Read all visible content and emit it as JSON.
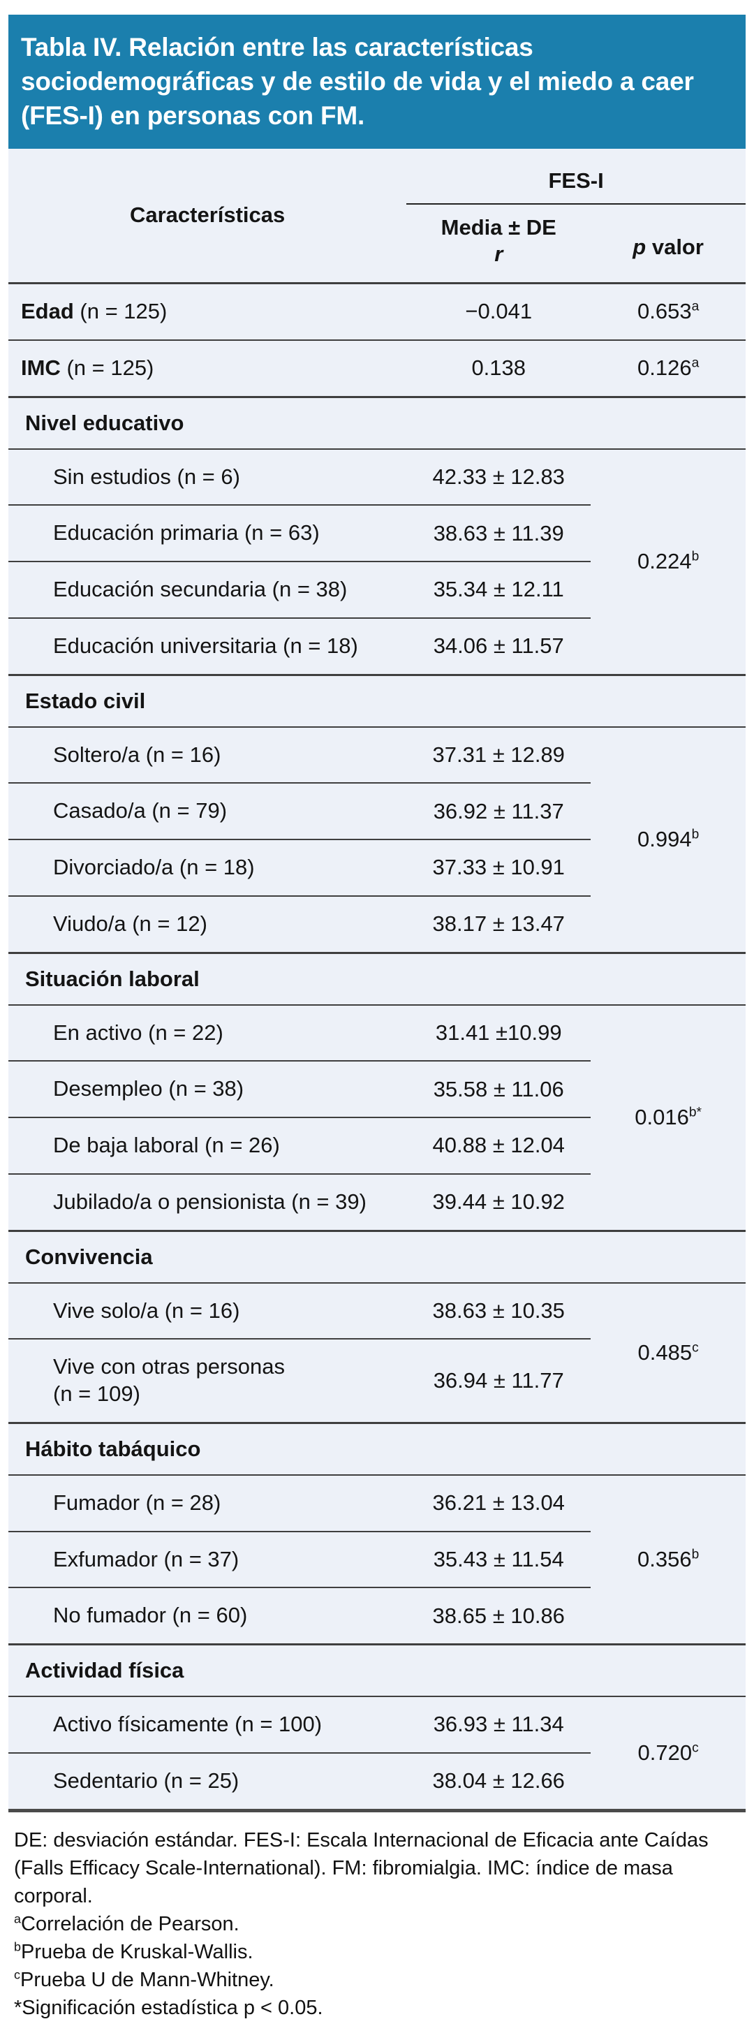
{
  "title": "Tabla IV. Relación entre las características sociodemográficas y de estilo de vida y el miedo a caer (FES-I) en personas con FM.",
  "colors": {
    "header_bg": "#1b7fad",
    "body_bg": "#edf1f8",
    "line": "#3f3f3f",
    "title_text": "#ffffff"
  },
  "table": {
    "col_characteristics": "Características",
    "col_group": "FES-I",
    "col_mean_line1": "Media ± DE",
    "col_mean_line2": "r",
    "col_p_italic": "p",
    "col_p_rest": " valor",
    "simple_rows": [
      {
        "label_bold": "Edad",
        "label_rest": " (n = 125)",
        "value": "−0.041",
        "p": "0.653",
        "p_sup": "a"
      },
      {
        "label_bold": "IMC",
        "label_rest": " (n = 125)",
        "value": "0.138",
        "p": "0.126",
        "p_sup": "a"
      }
    ],
    "sections": [
      {
        "header": "Nivel educativo",
        "p": "0.224",
        "p_sup": "b",
        "rows": [
          {
            "label": "Sin estudios (n = 6)",
            "value": "42.33 ± 12.83"
          },
          {
            "label": "Educación primaria (n = 63)",
            "value": "38.63 ± 11.39"
          },
          {
            "label": "Educación secundaria (n = 38)",
            "value": "35.34 ± 12.11"
          },
          {
            "label": "Educación universitaria (n = 18)",
            "value": "34.06 ± 11.57"
          }
        ]
      },
      {
        "header": "Estado civil",
        "p": "0.994",
        "p_sup": "b",
        "rows": [
          {
            "label": "Soltero/a (n = 16)",
            "value": "37.31 ± 12.89"
          },
          {
            "label": "Casado/a (n = 79)",
            "value": "36.92 ± 11.37"
          },
          {
            "label": "Divorciado/a (n = 18)",
            "value": "37.33 ± 10.91"
          },
          {
            "label": "Viudo/a (n = 12)",
            "value": "38.17 ± 13.47"
          }
        ]
      },
      {
        "header": "Situación laboral",
        "p": "0.016",
        "p_sup": "b*",
        "rows": [
          {
            "label": "En activo (n = 22)",
            "value": "31.41 ±10.99"
          },
          {
            "label": "Desempleo (n = 38)",
            "value": "35.58 ± 11.06"
          },
          {
            "label": "De baja laboral (n = 26)",
            "value": "40.88 ± 12.04"
          },
          {
            "label": "Jubilado/a o pensionista (n = 39)",
            "value": "39.44 ± 10.92"
          }
        ]
      },
      {
        "header": "Convivencia",
        "p": "0.485",
        "p_sup": "c",
        "rows": [
          {
            "label": "Vive solo/a (n = 16)",
            "value": "38.63 ± 10.35"
          },
          {
            "label": "Vive con otras personas",
            "label2": "(n = 109)",
            "value": "36.94 ± 11.77"
          }
        ]
      },
      {
        "header": "Hábito tabáquico",
        "p": "0.356",
        "p_sup": "b",
        "rows": [
          {
            "label": "Fumador (n = 28)",
            "value": "36.21 ± 13.04"
          },
          {
            "label": "Exfumador (n = 37)",
            "value": "35.43 ± 11.54"
          },
          {
            "label": "No fumador (n = 60)",
            "value": "38.65 ± 10.86"
          }
        ]
      },
      {
        "header": "Actividad física",
        "p": "0.720",
        "p_sup": "c",
        "rows": [
          {
            "label": "Activo físicamente (n = 100)",
            "value": "36.93 ± 11.34"
          },
          {
            "label": "Sedentario (n = 25)",
            "value": "38.04 ± 12.66"
          }
        ]
      }
    ]
  },
  "footnotes": [
    {
      "sup": "",
      "text": "DE: desviación estándar. FES-I: Escala Internacional de Eficacia ante Caídas (Falls Efficacy Scale-International). FM: fibromialgia. IMC: índice de masa corporal."
    },
    {
      "sup": "a",
      "text": "Correlación de Pearson."
    },
    {
      "sup": "b",
      "text": "Prueba de Kruskal-Wallis."
    },
    {
      "sup": "c",
      "text": "Prueba U de Mann-Whitney."
    },
    {
      "sup": "",
      "text": "*Significación estadística p < 0.05."
    }
  ]
}
